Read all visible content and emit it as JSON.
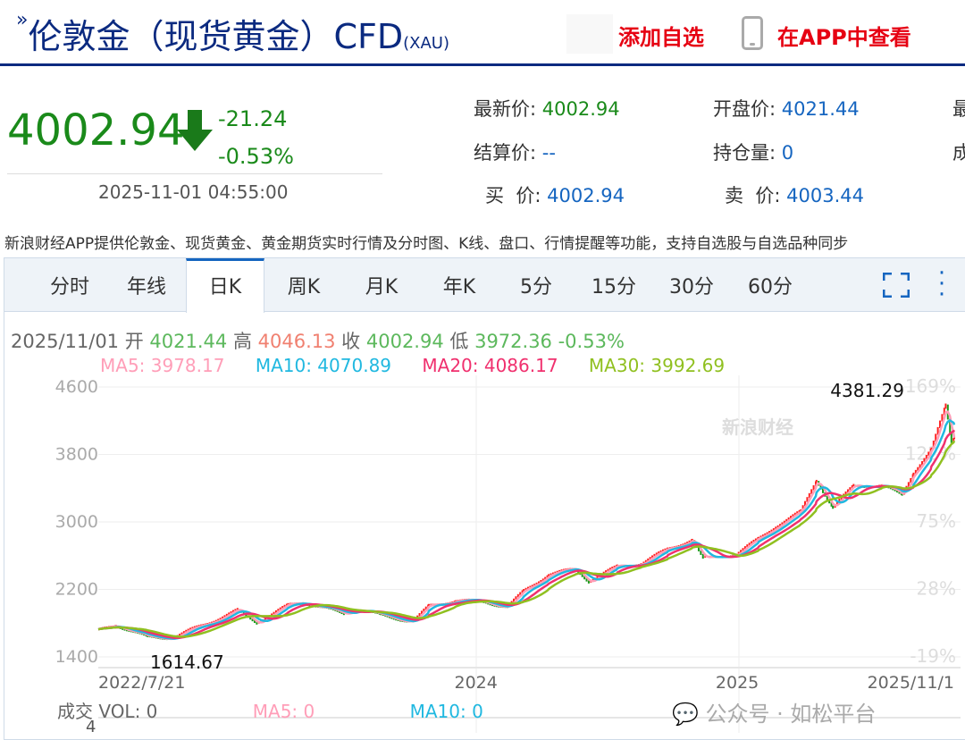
{
  "header": {
    "title": "伦敦金（现货黄金）CFD",
    "symbol": "(XAU)",
    "add_watch": "添加自选",
    "view_app": "在APP中查看"
  },
  "quote": {
    "price": "4002.94",
    "change": "-21.24",
    "change_pct": "-0.53%",
    "time": "2025-11-01 04:55:00",
    "fields": [
      {
        "label": "最新价:",
        "value": "4002.94"
      },
      {
        "label": "开盘价:",
        "value": "4021.44"
      },
      {
        "label": "结算价:",
        "value": "--"
      },
      {
        "label": "持仓量:",
        "value": "0"
      },
      {
        "label": "买  价:",
        "value": "4002.94"
      },
      {
        "label": "卖  价:",
        "value": "4003.44"
      },
      {
        "label": "最"
      },
      {
        "label": "成"
      }
    ]
  },
  "promo": "新浪财经APP提供伦敦金、现货黄金、黄金期货实时行情及分时图、K线、盘口、行情提醒等功能，支持自选股与自选品种同步",
  "tabs": [
    {
      "label": "分时"
    },
    {
      "label": "年线"
    },
    {
      "label": "日K",
      "active": true
    },
    {
      "label": "周K"
    },
    {
      "label": "月K"
    },
    {
      "label": "年K"
    },
    {
      "label": "5分"
    },
    {
      "label": "15分"
    },
    {
      "label": "30分"
    },
    {
      "label": "60分"
    }
  ],
  "ohlc": {
    "date": "2025/11/01",
    "open_label": "开",
    "open": "4021.44",
    "high_label": "高",
    "high": "4046.13",
    "close_label": "收",
    "close": "4002.94",
    "low_label": "低",
    "low": "3972.36",
    "pct": "-0.53%"
  },
  "ma": {
    "ma5": "MA5: 3978.17",
    "ma10": "MA10: 4070.89",
    "ma20": "MA20: 4086.17",
    "ma30": "MA30: 3992.69"
  },
  "colors": {
    "up": "#ff2020",
    "down": "#1a9a1a",
    "ma5": "#ff9eb8",
    "ma10": "#20b8e0",
    "ma20": "#f0306e",
    "ma30": "#90c020",
    "brand": "#0b2a80",
    "accent": "#e60012"
  },
  "chart_data": {
    "type": "line",
    "y_ticks": [
      "4600",
      "3800",
      "3000",
      "2200",
      "1400"
    ],
    "y_ticks_right": [
      "169%",
      "122%",
      "75%",
      "28%",
      "-19%"
    ],
    "x_ticks": [
      {
        "label": "2022/7/21",
        "date": "2022-07-21"
      },
      {
        "label": "2024",
        "date": "2024-01-01"
      },
      {
        "label": "2025",
        "date": "2025-01-01"
      },
      {
        "label": "2025/11/1",
        "date": "2025-11-01"
      }
    ],
    "max_label": "4381.29",
    "min_label": "1614.67",
    "ylim": [
      1400,
      4600
    ],
    "series": [
      {
        "dates": [
          "2022-07-21",
          "2022-08-15",
          "2022-09-28",
          "2022-11-03",
          "2022-12-15",
          "2023-02-01",
          "2023-02-28",
          "2023-04-13",
          "2023-05-04",
          "2023-06-30",
          "2023-07-20",
          "2023-08-21",
          "2023-10-05",
          "2023-10-27",
          "2023-12-04",
          "2024-01-15",
          "2024-02-14",
          "2024-03-08",
          "2024-04-12",
          "2024-05-20",
          "2024-06-07",
          "2024-07-17",
          "2024-08-20",
          "2024-09-26",
          "2024-10-30",
          "2024-11-14",
          "2024-12-31",
          "2025-01-31",
          "2025-02-24",
          "2025-03-31",
          "2025-04-22",
          "2025-05-15",
          "2025-06-13",
          "2025-07-23",
          "2025-08-20",
          "2025-09-05",
          "2025-09-30",
          "2025-10-20",
          "2025-10-28",
          "2025-11-01"
        ],
        "close": [
          1710,
          1780,
          1630,
          1630,
          1780,
          1950,
          1810,
          2010,
          2050,
          1910,
          1970,
          1890,
          1820,
          2000,
          2070,
          2050,
          1990,
          2180,
          2380,
          2440,
          2300,
          2470,
          2510,
          2680,
          2790,
          2560,
          2620,
          2800,
          2950,
          3120,
          3500,
          3170,
          3430,
          3430,
          3320,
          3590,
          3860,
          4381,
          3950,
          4003
        ]
      }
    ]
  },
  "volume": {
    "label": "成交",
    "vol": "VOL: 0",
    "ma5": "MA5: 0",
    "ma10": "MA10: 0",
    "axis": "4"
  },
  "watermark": {
    "text": "公众号 · 如松平台",
    "logo": "新浪财经"
  }
}
